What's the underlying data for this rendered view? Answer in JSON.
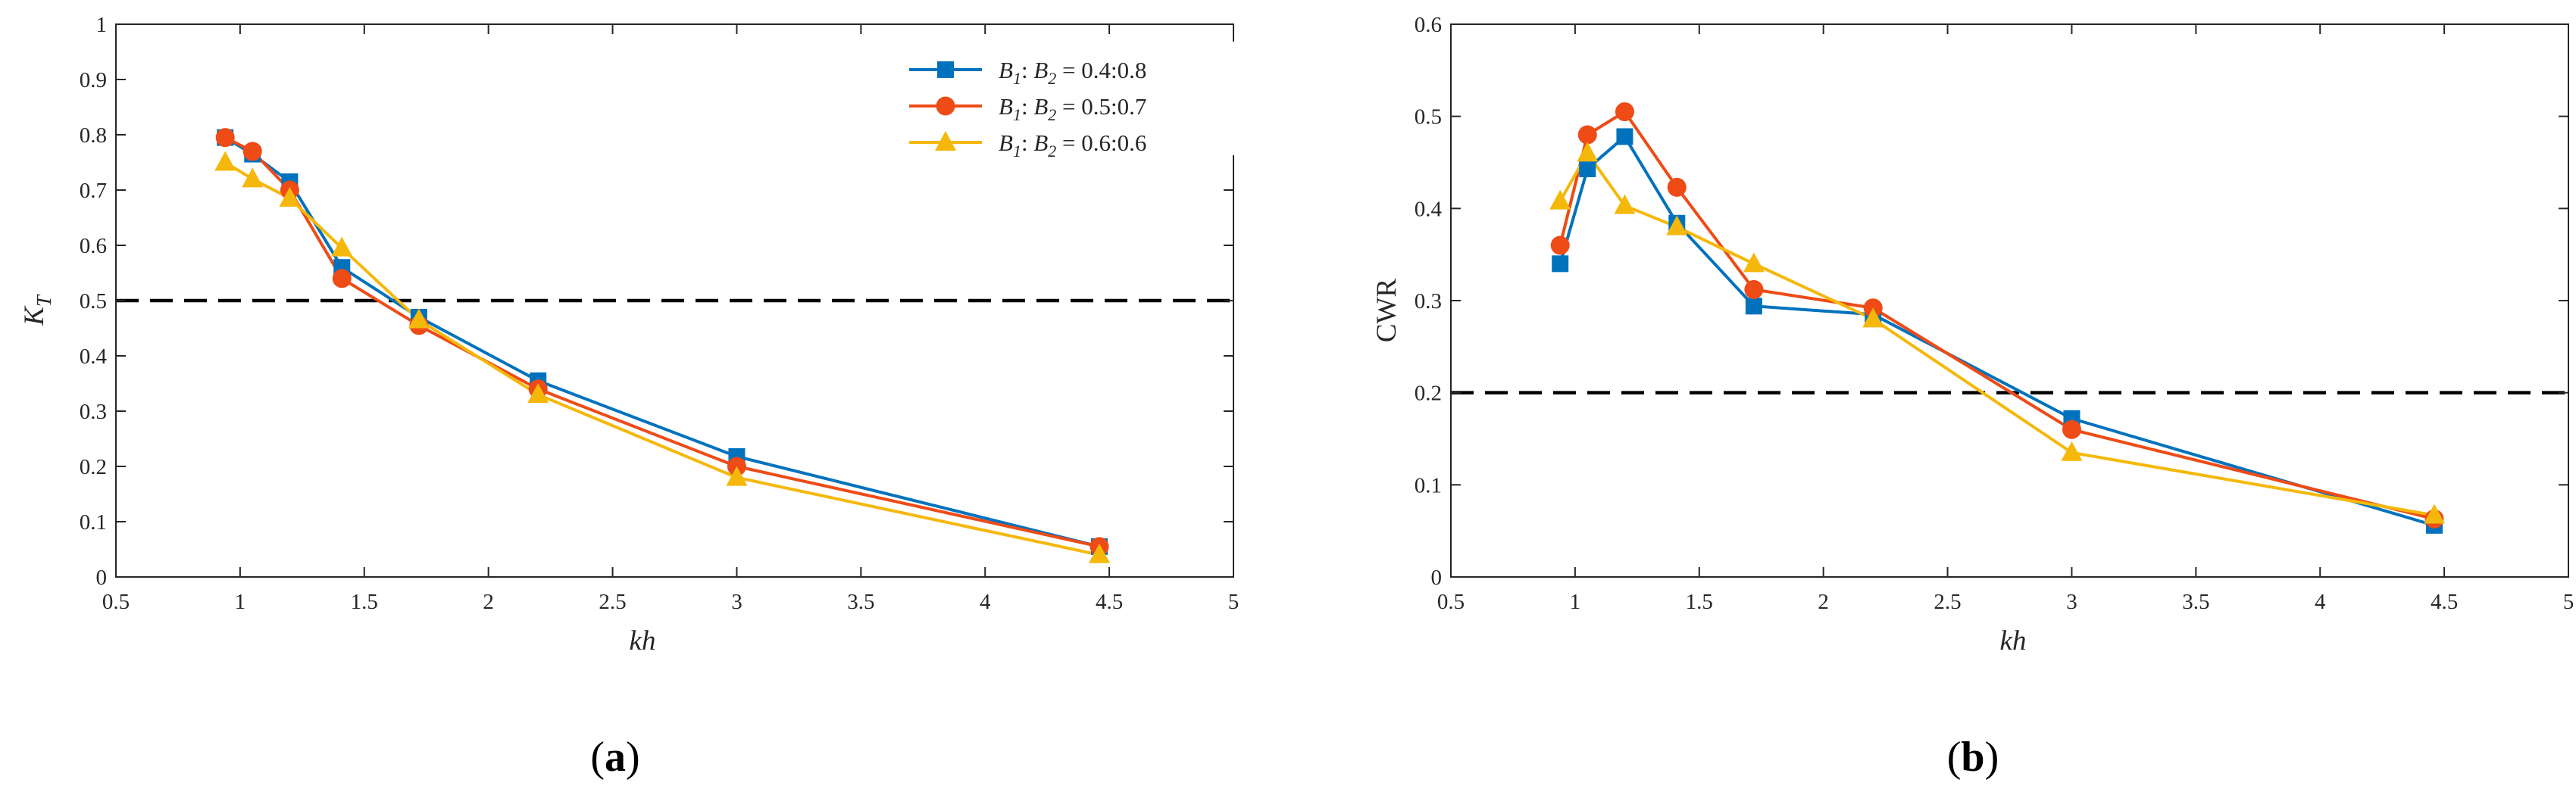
{
  "chart_data": [
    {
      "type": "line",
      "panel_label": "(a)",
      "panel_letter": "a",
      "xlabel": "kh",
      "ylabel_main": "K",
      "ylabel_sub": "T",
      "xlim": [
        0.5,
        5
      ],
      "ylim": [
        0,
        1
      ],
      "xticks": [
        "0.5",
        "1",
        "1.5",
        "2",
        "2.5",
        "3",
        "3.5",
        "4",
        "4.5",
        "5"
      ],
      "yticks": [
        "0",
        "0.1",
        "0.2",
        "0.3",
        "0.4",
        "0.5",
        "0.6",
        "0.7",
        "0.8",
        "0.9",
        "1"
      ],
      "reference_line": 0.5,
      "legend_position": "top-right",
      "series": [
        {
          "name": "B1: B2 = 0.4:0.8",
          "ratio": "0.4:0.8",
          "color": "#0072BD",
          "marker": "square",
          "x": [
            0.94,
            1.05,
            1.2,
            1.41,
            1.72,
            2.2,
            3.0,
            4.46
          ],
          "y": [
            0.795,
            0.765,
            0.715,
            0.56,
            0.47,
            0.355,
            0.218,
            0.055
          ]
        },
        {
          "name": "B1: B2 = 0.5:0.7",
          "ratio": "0.5:0.7",
          "color": "#EE4B16",
          "marker": "circle",
          "x": [
            0.94,
            1.05,
            1.2,
            1.41,
            1.72,
            2.2,
            3.0,
            4.46
          ],
          "y": [
            0.795,
            0.77,
            0.7,
            0.54,
            0.455,
            0.34,
            0.2,
            0.055
          ]
        },
        {
          "name": "B1: B2 = 0.6:0.6",
          "ratio": "0.6:0.6",
          "color": "#F5B80A",
          "marker": "triangle",
          "x": [
            0.94,
            1.05,
            1.2,
            1.41,
            1.72,
            2.2,
            3.0,
            4.46
          ],
          "y": [
            0.75,
            0.72,
            0.685,
            0.595,
            0.465,
            0.33,
            0.18,
            0.04
          ]
        }
      ]
    },
    {
      "type": "line",
      "panel_label": "(b)",
      "panel_letter": "b",
      "xlabel": "kh",
      "ylabel": "CWR",
      "xlim": [
        0.5,
        5
      ],
      "ylim": [
        0,
        0.6
      ],
      "xticks": [
        "0.5",
        "1",
        "1.5",
        "2",
        "2.5",
        "3",
        "3.5",
        "4",
        "4.5",
        "5"
      ],
      "yticks": [
        "0",
        "0.1",
        "0.2",
        "0.3",
        "0.4",
        "0.5",
        "0.6"
      ],
      "reference_line": 0.2,
      "series": [
        {
          "name": "B1: B2 = 0.4:0.8",
          "color": "#0072BD",
          "marker": "square",
          "x": [
            0.94,
            1.05,
            1.2,
            1.41,
            1.72,
            2.2,
            3.0,
            4.46
          ],
          "y": [
            0.34,
            0.443,
            0.478,
            0.384,
            0.294,
            0.285,
            0.172,
            0.056
          ]
        },
        {
          "name": "B1: B2 = 0.5:0.7",
          "color": "#EE4B16",
          "marker": "circle",
          "x": [
            0.94,
            1.05,
            1.2,
            1.41,
            1.72,
            2.2,
            3.0,
            4.46
          ],
          "y": [
            0.36,
            0.48,
            0.505,
            0.423,
            0.312,
            0.292,
            0.16,
            0.063
          ]
        },
        {
          "name": "B1: B2 = 0.6:0.6",
          "color": "#F5B80A",
          "marker": "triangle",
          "x": [
            0.94,
            1.05,
            1.2,
            1.41,
            1.72,
            2.2,
            3.0,
            4.46
          ],
          "y": [
            0.408,
            0.46,
            0.403,
            0.38,
            0.34,
            0.28,
            0.135,
            0.067
          ]
        }
      ]
    }
  ]
}
